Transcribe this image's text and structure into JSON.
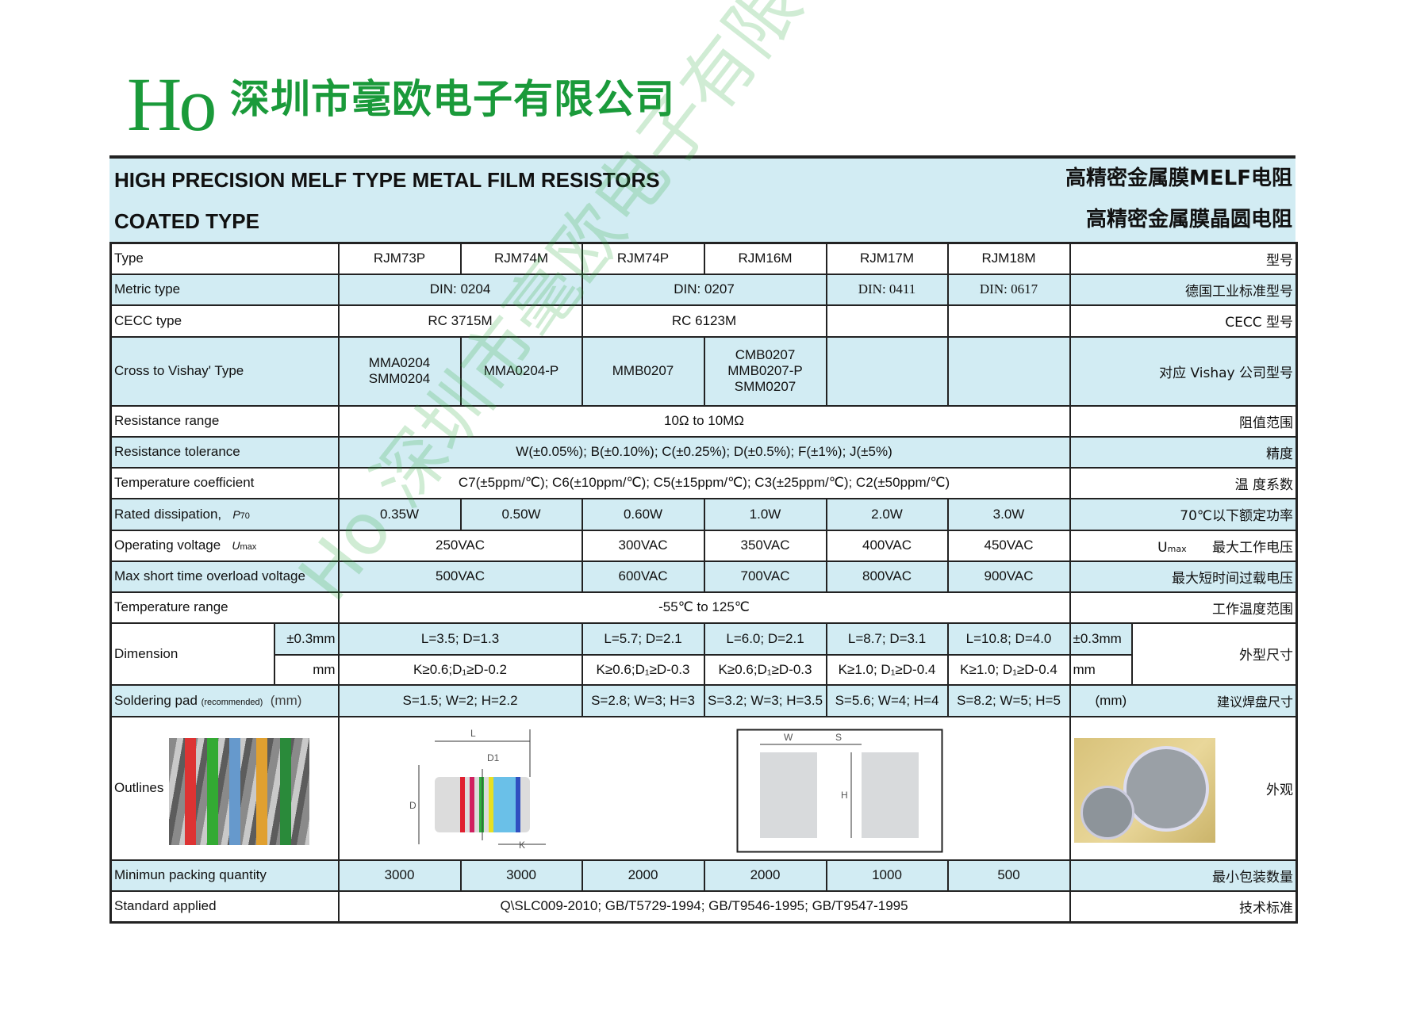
{
  "header": {
    "logo": "Ho",
    "company": "深圳市毫欧电子有限公司",
    "title_en": "HIGH PRECISION MELF TYPE METAL FILM RESISTORS",
    "subtitle_en": "COATED TYPE",
    "title_cn": "高精密金属膜MELF电阻",
    "subtitle_cn": "高精密金属膜晶圆电阻",
    "brand_color": "#1a9a3a",
    "band_color": "#d2ecf3"
  },
  "watermark": "Ho 深圳市毫欧电子有限公司",
  "table": {
    "type": {
      "label": "Type",
      "values": [
        "RJM73P",
        "RJM74M",
        "RJM74P",
        "RJM16M",
        "RJM17M",
        "RJM18M"
      ],
      "cn": "型号"
    },
    "metric": {
      "label": "Metric type",
      "v0204": "DIN: 0204",
      "v0207": "DIN: 0207",
      "v0411": "DIN: 0411",
      "v0617": "DIN: 0617",
      "cn": "德国工业标准型号"
    },
    "cecc": {
      "label": "CECC type",
      "v1": "RC 3715M",
      "v2": "RC 6123M",
      "cn": "CECC 型号"
    },
    "vishay": {
      "label": "Cross to Vishay' Type",
      "v1a": "MMA0204",
      "v1b": "SMM0204",
      "v2": "MMA0204-P",
      "v3": "MMB0207",
      "v4a": "CMB0207",
      "v4b": "MMB0207-P",
      "v4c": "SMM0207",
      "cn": "对应 Vishay 公司型号"
    },
    "res_range": {
      "label": "Resistance range",
      "value": "10Ω to 10MΩ",
      "cn": "阻值范围"
    },
    "tolerance": {
      "label": "Resistance tolerance",
      "value": "W(±0.05%);  B(±0.10%); C(±0.25%); D(±0.5%); F(±1%); J(±5%)",
      "cn": "精度"
    },
    "tcr": {
      "label": "Temperature coefficient",
      "value": "C7(±5ppm/℃);  C6(±10ppm/℃); C5(±15ppm/℃); C3(±25ppm/℃);  C2(±50ppm/℃)",
      "cn": "温 度系数"
    },
    "rated": {
      "label": "Rated dissipation,",
      "sym": "P",
      "sub": "70",
      "values": [
        "0.35W",
        "0.50W",
        "0.60W",
        "1.0W",
        "2.0W",
        "3.0W"
      ],
      "cn": "70℃以下额定功率"
    },
    "operating": {
      "label": "Operating voltage",
      "sym": "U",
      "sub": "max",
      "values": [
        "250VAC",
        "300VAC",
        "350VAC",
        "400VAC",
        "450VAC"
      ],
      "cn_sym": "U",
      "cn_sub": "max",
      "cn": "最大工作电压"
    },
    "overload": {
      "label": "Max short time overload voltage",
      "values": [
        "500VAC",
        "600VAC",
        "700VAC",
        "800VAC",
        "900VAC"
      ],
      "cn": "最大短时间过载电压"
    },
    "temp_range": {
      "label": "Temperature range",
      "value": "-55℃ to 125℃",
      "cn": "工作温度范围"
    },
    "dimension": {
      "label": "Dimension",
      "unit1": "±0.3mm",
      "unit2": "mm",
      "row1": [
        "L=3.5; D=1.3",
        "L=5.7; D=2.1",
        "L=6.0; D=2.1",
        "L=8.7;  D=3.1",
        "L=10.8; D=4.0"
      ],
      "row2": [
        "K≥0.6;D₁≥D-0.2",
        "K≥0.6;D₁≥D-0.3",
        "K≥0.6;D₁≥D-0.3",
        "K≥1.0; D₁≥D-0.4",
        "K≥1.0; D₁≥D-0.4"
      ],
      "cn": "外型尺寸"
    },
    "pad": {
      "label": "Soldering pad",
      "note": "(recommended)",
      "unit": "(mm)",
      "values": [
        "S=1.5; W=2; H=2.2",
        "S=2.8; W=3; H=3",
        "S=3.2; W=3; H=3.5",
        "S=5.6; W=4; H=4",
        "S=8.2; W=5; H=5"
      ],
      "unit_r": "(mm)",
      "cn": "建议焊盘尺寸"
    },
    "outlines": {
      "label": "Outlines",
      "cn": "外观",
      "dim_L": "L",
      "dim_D1": "D1",
      "dim_D": "D",
      "dim_K": "K",
      "pad_W": "W",
      "pad_S": "S",
      "pad_H": "H"
    },
    "packing": {
      "label": "Minimun packing quantity",
      "values": [
        "3000",
        "3000",
        "2000",
        "2000",
        "1000",
        "500"
      ],
      "cn": "最小包装数量"
    },
    "standard": {
      "label": "Standard applied",
      "value": "Q\\SLC009-2010; GB/T5729-1994; GB/T9546-1995; GB/T9547-1995",
      "cn": "技术标准"
    }
  }
}
